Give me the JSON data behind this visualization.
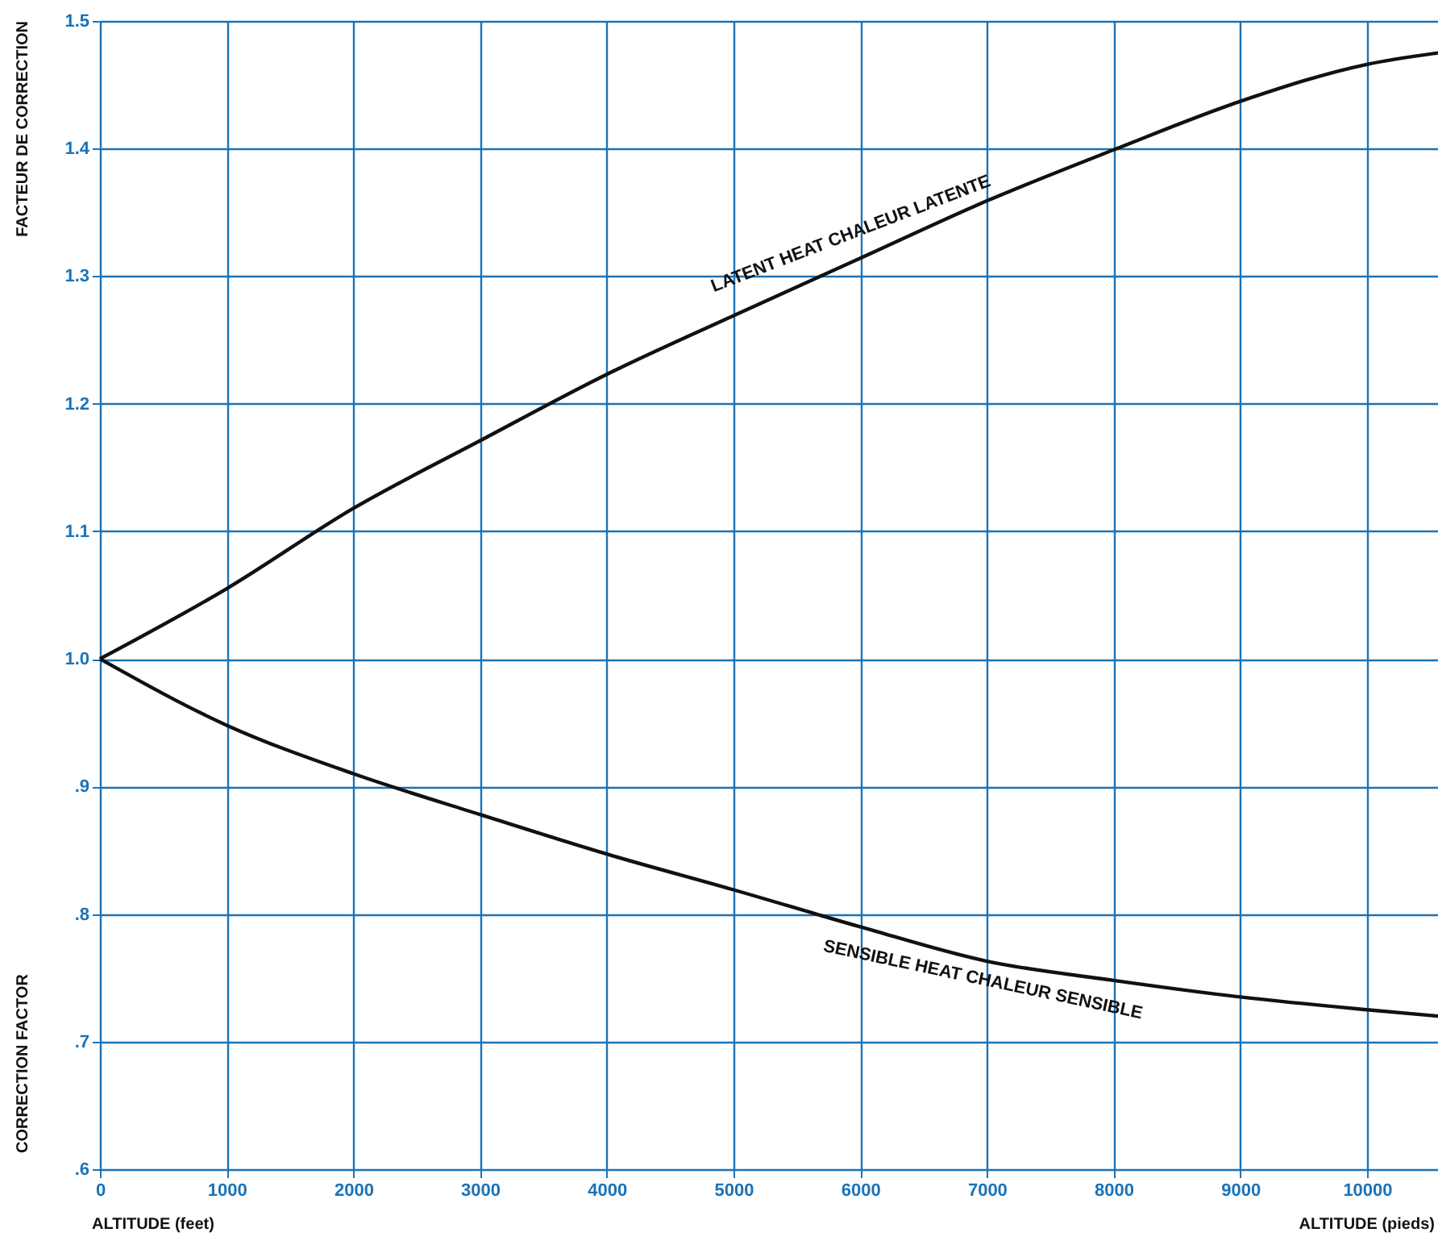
{
  "chart_data": {
    "type": "line",
    "xlabel": "ALTITUDE (feet)",
    "ylabel": "CORRECTION FACTOR",
    "annotations": [
      "FACTEUR DE CORRECTION",
      "ALTITUDE (pieds)"
    ],
    "x": [
      0,
      1000,
      2000,
      3000,
      4000,
      5000,
      6000,
      7000,
      8000,
      9000,
      10000,
      10560
    ],
    "series": [
      {
        "name": "LATENT HEAT  CHALEUR LATENTE",
        "color": "#111111",
        "values": [
          1.0,
          1.055,
          1.118,
          1.171,
          1.223,
          1.269,
          1.314,
          1.359,
          1.399,
          1.437,
          1.466,
          1.475
        ]
      },
      {
        "name": "SENSIBLE HEAT  CHALEUR SENSIBLE",
        "color": "#111111",
        "values": [
          1.0,
          0.948,
          0.91,
          0.878,
          0.847,
          0.819,
          0.79,
          0.763,
          0.748,
          0.735,
          0.725,
          0.72
        ]
      }
    ],
    "xlim": [
      0,
      10560
    ],
    "xticks": [
      0,
      1000,
      2000,
      3000,
      4000,
      5000,
      6000,
      7000,
      8000,
      9000,
      10000
    ],
    "ylim": [
      0.6,
      1.5
    ],
    "yticks": [
      {
        "value": 0.6,
        "label": ".6"
      },
      {
        "value": 0.7,
        "label": ".7"
      },
      {
        "value": 0.8,
        "label": ".8"
      },
      {
        "value": 0.9,
        "label": ".9"
      },
      {
        "value": 1.0,
        "label": "1.0"
      },
      {
        "value": 1.1,
        "label": "1.1"
      },
      {
        "value": 1.2,
        "label": "1.2"
      },
      {
        "value": 1.3,
        "label": "1.3"
      },
      {
        "value": 1.4,
        "label": "1.4"
      },
      {
        "value": 1.5,
        "label": "1.5"
      }
    ],
    "grid": true,
    "marker": "none",
    "line_style": "solid"
  }
}
